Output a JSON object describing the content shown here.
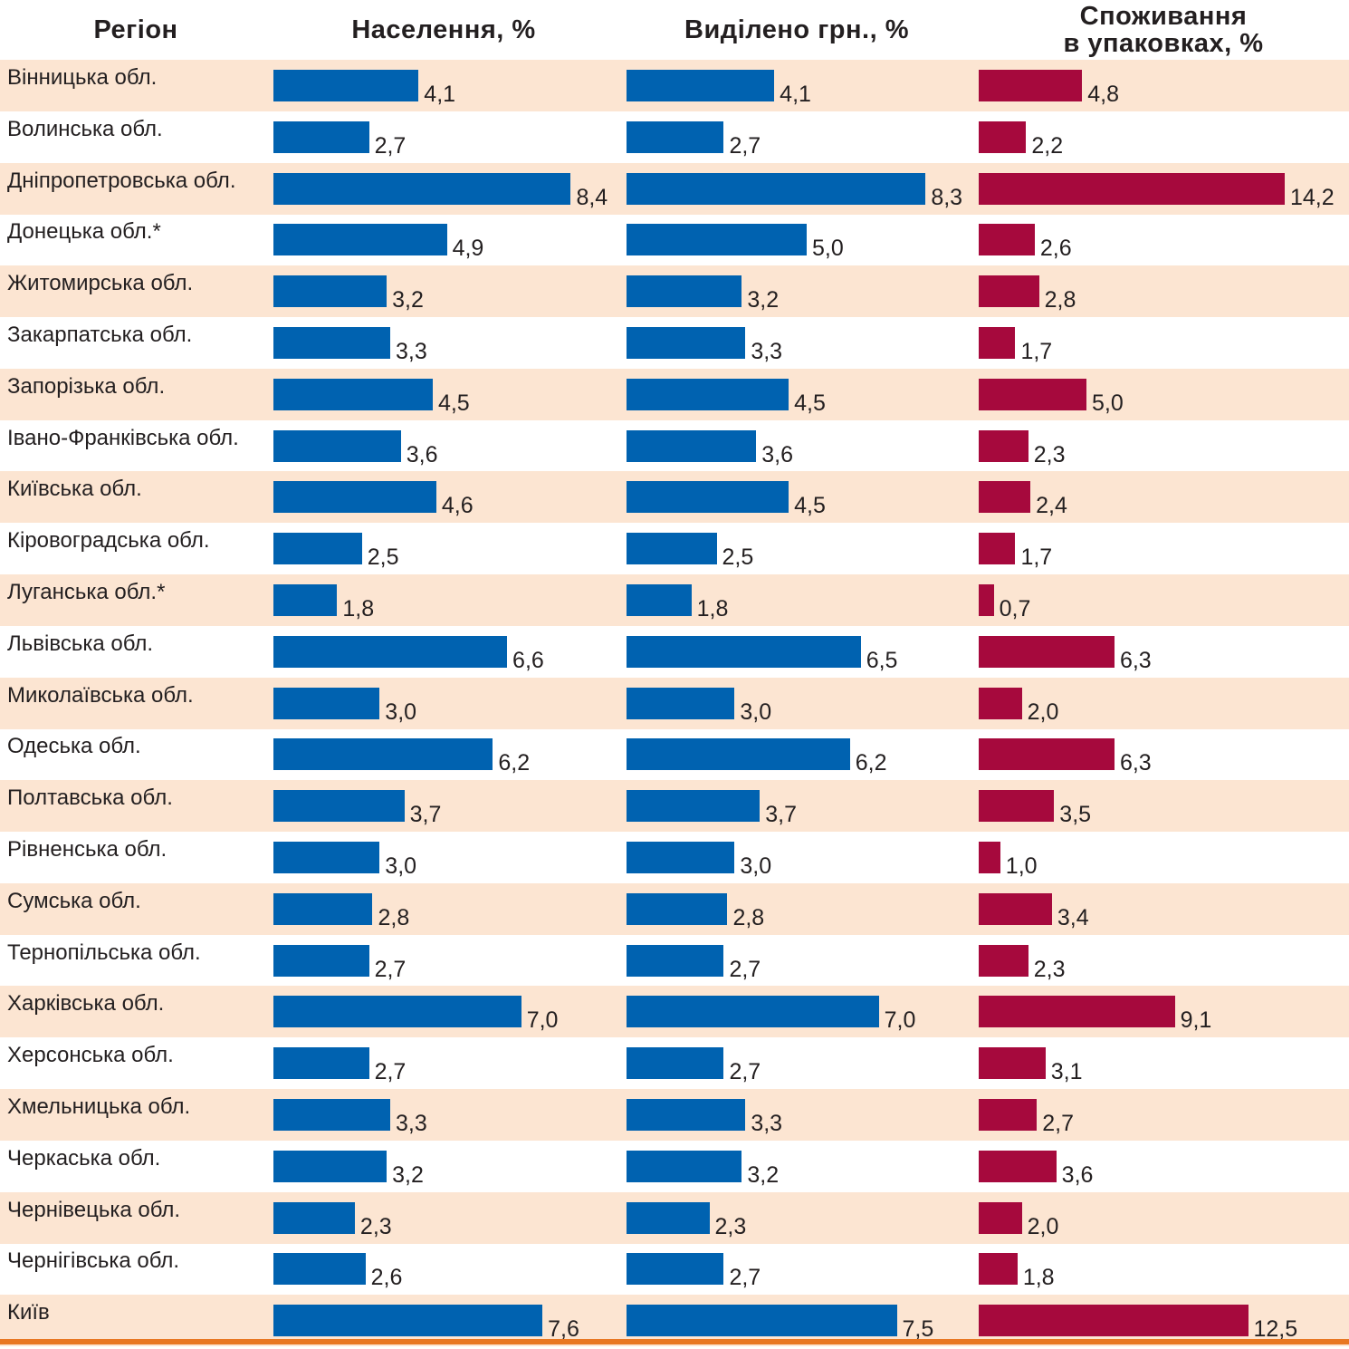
{
  "colors": {
    "population_bar": "#0062b0",
    "allocated_bar": "#0062b0",
    "consumption_bar": "#a6093d",
    "row_alt_fill": "#fce5d2",
    "rule": "#e87722",
    "text": "#231f20"
  },
  "headers": {
    "region": "Регіон",
    "population": "Населення, %",
    "allocated": "Виділено грн., %",
    "consumption": "Споживання\nв упаковках, %"
  },
  "chart_data": {
    "type": "bar",
    "orientation": "horizontal",
    "title": "",
    "categories": [
      "Вінницька обл.",
      "Волинська обл.",
      "Дніпропетровська обл.",
      "Донецька обл.*",
      "Житомирська обл.",
      "Закарпатська обл.",
      "Запорізька обл.",
      "Івано-Франківська обл.",
      "Київська обл.",
      "Кіровоградська обл.",
      "Луганська обл.*",
      "Львівська обл.",
      "Миколаївська обл.",
      "Одеська обл.",
      "Полтавська обл.",
      "Рівненська обл.",
      "Сумська обл.",
      "Тернопільська обл.",
      "Харківська обл.",
      "Херсонська обл.",
      "Хмельницька обл.",
      "Черкаська обл.",
      "Чернівецька обл.",
      "Чернігівська обл.",
      "Київ"
    ],
    "series": [
      {
        "name": "Населення, %",
        "values": [
          4.1,
          2.7,
          8.4,
          4.9,
          3.2,
          3.3,
          4.5,
          3.6,
          4.6,
          2.5,
          1.8,
          6.6,
          3.0,
          6.2,
          3.7,
          3.0,
          2.8,
          2.7,
          7.0,
          2.7,
          3.3,
          3.2,
          2.3,
          2.6,
          7.6
        ],
        "labels": [
          "4,1",
          "2,7",
          "8,4",
          "4,9",
          "3,2",
          "3,3",
          "4,5",
          "3,6",
          "4,6",
          "2,5",
          "1,8",
          "6,6",
          "3,0",
          "6,2",
          "3,7",
          "3,0",
          "2,8",
          "2,7",
          "7,0",
          "2,7",
          "3,3",
          "3,2",
          "2,3",
          "2,6",
          "7,6"
        ]
      },
      {
        "name": "Виділено грн., %",
        "values": [
          4.1,
          2.7,
          8.3,
          5.0,
          3.2,
          3.3,
          4.5,
          3.6,
          4.5,
          2.5,
          1.8,
          6.5,
          3.0,
          6.2,
          3.7,
          3.0,
          2.8,
          2.7,
          7.0,
          2.7,
          3.3,
          3.2,
          2.3,
          2.7,
          7.5
        ],
        "labels": [
          "4,1",
          "2,7",
          "8,3",
          "5,0",
          "3,2",
          "3,3",
          "4,5",
          "3,6",
          "4,5",
          "2,5",
          "1,8",
          "6,5",
          "3,0",
          "6,2",
          "3,7",
          "3,0",
          "2,8",
          "2,7",
          "7,0",
          "2,7",
          "3,3",
          "3,2",
          "2,3",
          "2,7",
          "7,5"
        ]
      },
      {
        "name": "Споживання в упаковках, %",
        "values": [
          4.8,
          2.2,
          14.2,
          2.6,
          2.8,
          1.7,
          5.0,
          2.3,
          2.4,
          1.7,
          0.7,
          6.3,
          2.0,
          6.3,
          3.5,
          1.0,
          3.4,
          2.3,
          9.1,
          3.1,
          2.7,
          3.6,
          2.0,
          1.8,
          12.5
        ],
        "labels": [
          "4,8",
          "2,2",
          "14,2",
          "2,6",
          "2,8",
          "1,7",
          "5,0",
          "2,3",
          "2,4",
          "1,7",
          "0,7",
          "6,3",
          "2,0",
          "6,3",
          "3,5",
          "1,0",
          "3,4",
          "2,3",
          "9,1",
          "3,1",
          "2,7",
          "3,6",
          "2,0",
          "1,8",
          "12,5"
        ]
      }
    ],
    "grid": false,
    "legend": "none"
  }
}
